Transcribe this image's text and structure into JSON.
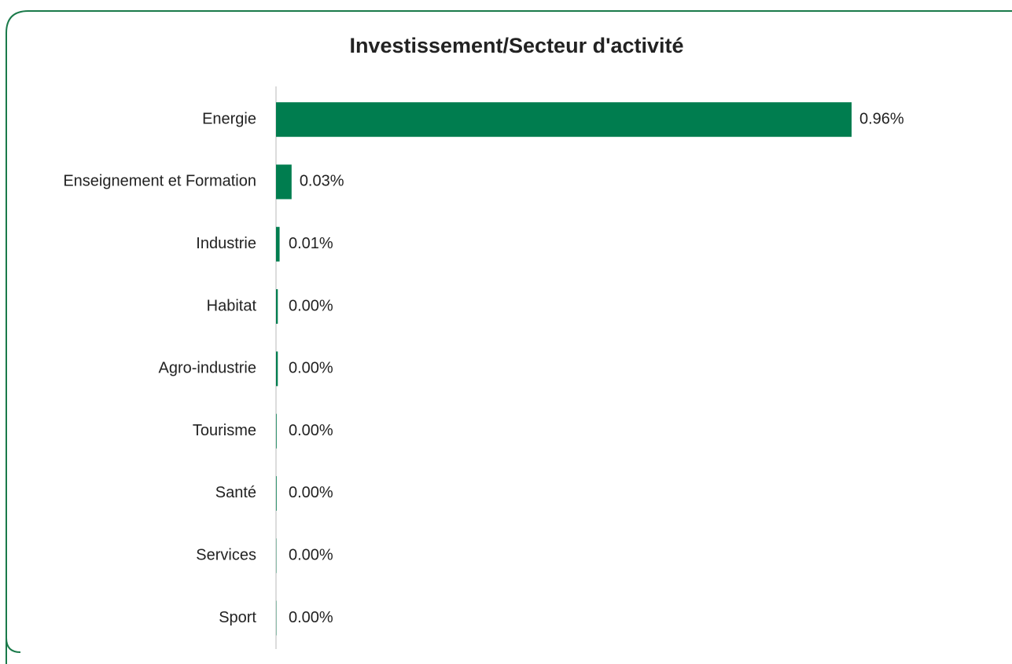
{
  "chart_data": {
    "type": "bar",
    "orientation": "horizontal",
    "title": "Investissement/Secteur d'activité",
    "categories": [
      "Energie",
      "Enseignement et Formation",
      "Industrie",
      "Habitat",
      "Agro-industrie",
      "Tourisme",
      "Santé",
      "Services",
      "Sport"
    ],
    "values": [
      0.96,
      0.026,
      0.006,
      0.003,
      0.003,
      0.001,
      0.001,
      0.0005,
      0.0005
    ],
    "value_labels": [
      "0.96%",
      "0.03%",
      "0.01%",
      "0.00%",
      "0.00%",
      "0.00%",
      "0.00%",
      "0.00%",
      "0.00%"
    ],
    "color": "#007d4f"
  }
}
